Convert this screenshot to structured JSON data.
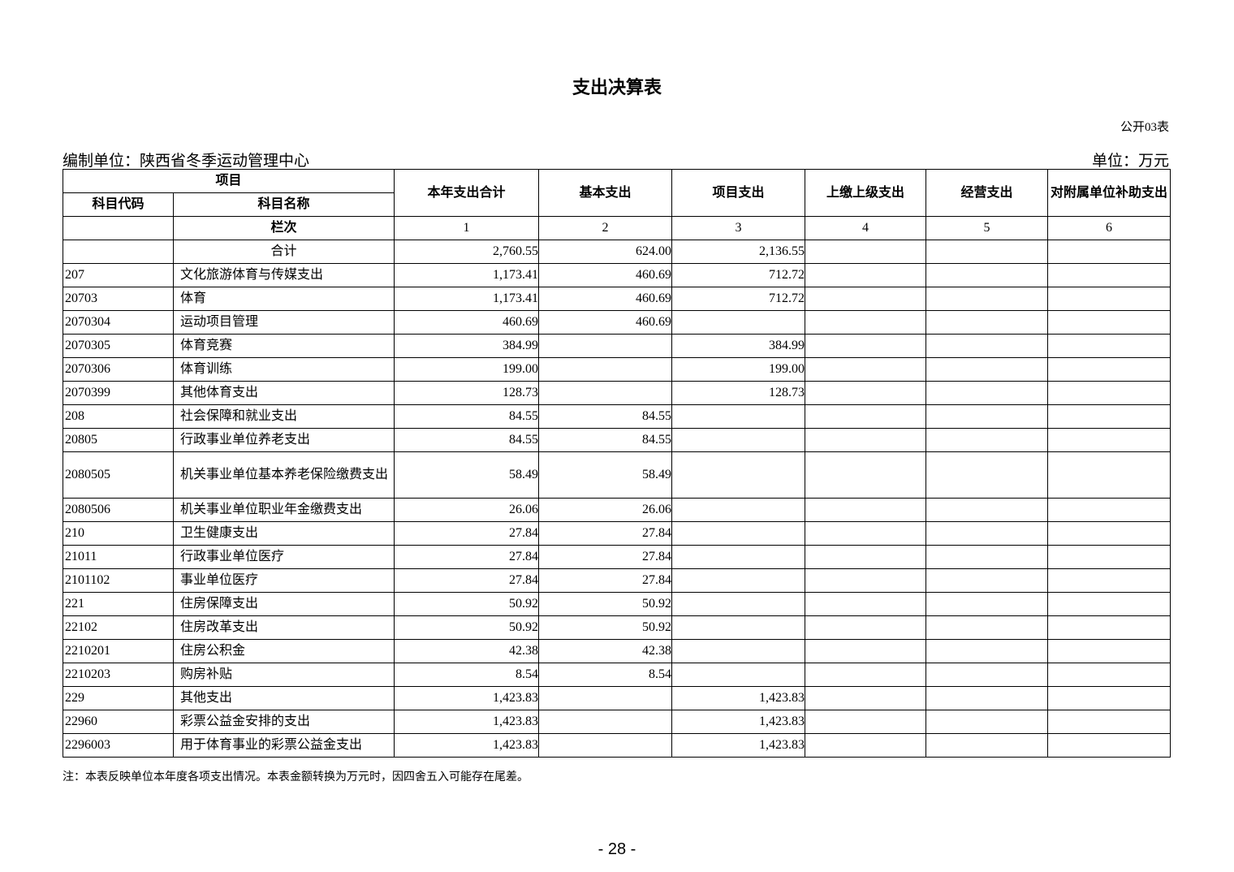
{
  "title": "支出决算表",
  "table_no": "公开03表",
  "org": "编制单位：陕西省冬季运动管理中心",
  "unit": "单位：万元",
  "headers": {
    "item": "项目",
    "code": "科目代码",
    "name": "科目名称",
    "cols": [
      "本年支出合计",
      "基本支出",
      "项目支出",
      "上缴上级支出",
      "经营支出",
      "对附属单位补助支出"
    ],
    "col_index_label": "栏次",
    "col_index": [
      "1",
      "2",
      "3",
      "4",
      "5",
      "6"
    ]
  },
  "rows": [
    {
      "code": "",
      "name": "合计",
      "v": [
        "2,760.55",
        "624.00",
        "2,136.55",
        "",
        "",
        ""
      ]
    },
    {
      "code": "207",
      "name": "文化旅游体育与传媒支出",
      "v": [
        "1,173.41",
        "460.69",
        "712.72",
        "",
        "",
        ""
      ]
    },
    {
      "code": "20703",
      "name": "体育",
      "v": [
        "1,173.41",
        "460.69",
        "712.72",
        "",
        "",
        ""
      ]
    },
    {
      "code": "2070304",
      "name": "运动项目管理",
      "v": [
        "460.69",
        "460.69",
        "",
        "",
        "",
        ""
      ]
    },
    {
      "code": "2070305",
      "name": "体育竞赛",
      "v": [
        "384.99",
        "",
        "384.99",
        "",
        "",
        ""
      ]
    },
    {
      "code": "2070306",
      "name": "体育训练",
      "v": [
        "199.00",
        "",
        "199.00",
        "",
        "",
        ""
      ]
    },
    {
      "code": "2070399",
      "name": "其他体育支出",
      "v": [
        "128.73",
        "",
        "128.73",
        "",
        "",
        ""
      ]
    },
    {
      "code": "208",
      "name": "社会保障和就业支出",
      "v": [
        "84.55",
        "84.55",
        "",
        "",
        "",
        ""
      ]
    },
    {
      "code": "20805",
      "name": "行政事业单位养老支出",
      "v": [
        "84.55",
        "84.55",
        "",
        "",
        "",
        ""
      ]
    },
    {
      "code": "2080505",
      "name": "机关事业单位基本养老保险缴费支出",
      "v": [
        "58.49",
        "58.49",
        "",
        "",
        "",
        ""
      ]
    },
    {
      "code": "2080506",
      "name": "机关事业单位职业年金缴费支出",
      "v": [
        "26.06",
        "26.06",
        "",
        "",
        "",
        ""
      ]
    },
    {
      "code": "210",
      "name": "卫生健康支出",
      "v": [
        "27.84",
        "27.84",
        "",
        "",
        "",
        ""
      ]
    },
    {
      "code": "21011",
      "name": "行政事业单位医疗",
      "v": [
        "27.84",
        "27.84",
        "",
        "",
        "",
        ""
      ]
    },
    {
      "code": "2101102",
      "name": "事业单位医疗",
      "v": [
        "27.84",
        "27.84",
        "",
        "",
        "",
        ""
      ]
    },
    {
      "code": "221",
      "name": "住房保障支出",
      "v": [
        "50.92",
        "50.92",
        "",
        "",
        "",
        ""
      ]
    },
    {
      "code": "22102",
      "name": "住房改革支出",
      "v": [
        "50.92",
        "50.92",
        "",
        "",
        "",
        ""
      ]
    },
    {
      "code": "2210201",
      "name": "住房公积金",
      "v": [
        "42.38",
        "42.38",
        "",
        "",
        "",
        ""
      ]
    },
    {
      "code": "2210203",
      "name": "购房补贴",
      "v": [
        "8.54",
        "8.54",
        "",
        "",
        "",
        ""
      ]
    },
    {
      "code": "229",
      "name": "其他支出",
      "v": [
        "1,423.83",
        "",
        "1,423.83",
        "",
        "",
        ""
      ]
    },
    {
      "code": "22960",
      "name": "彩票公益金安排的支出",
      "v": [
        "1,423.83",
        "",
        "1,423.83",
        "",
        "",
        ""
      ]
    },
    {
      "code": "2296003",
      "name": "用于体育事业的彩票公益金支出",
      "v": [
        "1,423.83",
        "",
        "1,423.83",
        "",
        "",
        ""
      ]
    }
  ],
  "note": "注：本表反映单位本年度各项支出情况。本表金额转换为万元时，因四舍五入可能存在尾差。",
  "page_number": "- 28 -"
}
